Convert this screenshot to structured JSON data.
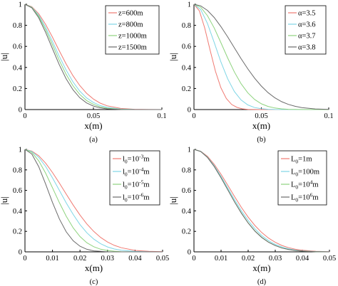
{
  "chart_data": [
    {
      "type": "line",
      "panel_label": "(a)",
      "xlabel": "x(m)",
      "ylabel": "|u|",
      "xlim": [
        0,
        0.1
      ],
      "ylim": [
        0,
        1
      ],
      "xticks": [
        0,
        0.05,
        0.1
      ],
      "xtick_labels": [
        "0",
        "0.05",
        "0.1"
      ],
      "yticks": [
        0,
        0.2,
        0.4,
        0.6,
        0.8,
        1
      ],
      "ytick_labels": [
        "0",
        "0.2",
        "0.4",
        "0.6",
        "0.8",
        "1"
      ],
      "legend_position": "top-right",
      "series": [
        {
          "name": "z=600m",
          "color": "#f07a72",
          "x": [
            0,
            0.005,
            0.01,
            0.015,
            0.02,
            0.025,
            0.03,
            0.035,
            0.04,
            0.045,
            0.05,
            0.055,
            0.06,
            0.07,
            0.08,
            0.09,
            0.1
          ],
          "y": [
            1,
            0.977,
            0.911,
            0.811,
            0.69,
            0.56,
            0.435,
            0.323,
            0.229,
            0.155,
            0.1,
            0.061,
            0.036,
            0.011,
            0.003,
            0.001,
            0
          ]
        },
        {
          "name": "z=800m",
          "color": "#7fd6e6",
          "x": [
            0,
            0.005,
            0.01,
            0.015,
            0.02,
            0.025,
            0.03,
            0.035,
            0.04,
            0.045,
            0.05,
            0.055,
            0.06,
            0.07,
            0.08,
            0.09,
            0.1
          ],
          "y": [
            1,
            0.973,
            0.897,
            0.784,
            0.649,
            0.508,
            0.377,
            0.264,
            0.176,
            0.111,
            0.067,
            0.038,
            0.021,
            0.005,
            0.001,
            0,
            0
          ]
        },
        {
          "name": "z=1000m",
          "color": "#8ed37e",
          "x": [
            0,
            0.005,
            0.01,
            0.015,
            0.02,
            0.025,
            0.03,
            0.035,
            0.04,
            0.045,
            0.05,
            0.055,
            0.06,
            0.07,
            0.08,
            0.09,
            0.1
          ],
          "y": [
            1,
            0.97,
            0.886,
            0.762,
            0.618,
            0.469,
            0.336,
            0.227,
            0.144,
            0.086,
            0.049,
            0.026,
            0.013,
            0.003,
            0,
            0,
            0
          ]
        },
        {
          "name": "z=1500m",
          "color": "#6b6b6b",
          "x": [
            0,
            0.005,
            0.01,
            0.015,
            0.02,
            0.025,
            0.03,
            0.035,
            0.04,
            0.045,
            0.05,
            0.055,
            0.06,
            0.07,
            0.08,
            0.09,
            0.1
          ],
          "y": [
            1,
            0.966,
            0.872,
            0.736,
            0.581,
            0.428,
            0.294,
            0.189,
            0.113,
            0.063,
            0.033,
            0.016,
            0.007,
            0.001,
            0,
            0,
            0
          ]
        }
      ]
    },
    {
      "type": "line",
      "panel_label": "(b)",
      "xlabel": "x(m)",
      "ylabel": "|u|",
      "xlim": [
        0,
        0.1
      ],
      "ylim": [
        0,
        1
      ],
      "xticks": [
        0,
        0.05,
        0.1
      ],
      "xtick_labels": [
        "0",
        "0.05",
        "0.1"
      ],
      "yticks": [
        0,
        0.2,
        0.4,
        0.6,
        0.8,
        1
      ],
      "ytick_labels": [
        "0",
        "0.2",
        "0.4",
        "0.6",
        "0.8",
        "1"
      ],
      "legend_position": "top-right",
      "series": [
        {
          "name": "α=3.5",
          "color": "#f07a72",
          "x": [
            0,
            0.004,
            0.008,
            0.012,
            0.016,
            0.02,
            0.024,
            0.028,
            0.032,
            0.036,
            0.04,
            0.05,
            0.06,
            0.08,
            0.1
          ],
          "y": [
            1,
            0.938,
            0.774,
            0.562,
            0.362,
            0.207,
            0.105,
            0.048,
            0.02,
            0.007,
            0.002,
            0,
            0,
            0,
            0
          ]
        },
        {
          "name": "α=3.6",
          "color": "#7fd6e6",
          "x": [
            0,
            0.005,
            0.01,
            0.015,
            0.02,
            0.025,
            0.03,
            0.035,
            0.04,
            0.045,
            0.05,
            0.055,
            0.06,
            0.08,
            0.1
          ],
          "y": [
            1,
            0.951,
            0.818,
            0.637,
            0.452,
            0.292,
            0.171,
            0.091,
            0.044,
            0.019,
            0.008,
            0.003,
            0.001,
            0,
            0
          ]
        },
        {
          "name": "α=3.7",
          "color": "#8ed37e",
          "x": [
            0,
            0.005,
            0.01,
            0.015,
            0.02,
            0.025,
            0.03,
            0.035,
            0.04,
            0.045,
            0.05,
            0.055,
            0.06,
            0.065,
            0.07,
            0.08,
            0.1
          ],
          "y": [
            1,
            0.972,
            0.892,
            0.775,
            0.635,
            0.49,
            0.357,
            0.245,
            0.158,
            0.096,
            0.055,
            0.03,
            0.015,
            0.007,
            0.003,
            0.001,
            0
          ]
        },
        {
          "name": "α=3.8",
          "color": "#6b6b6b",
          "x": [
            0,
            0.005,
            0.01,
            0.015,
            0.02,
            0.025,
            0.03,
            0.035,
            0.04,
            0.045,
            0.05,
            0.055,
            0.06,
            0.065,
            0.07,
            0.075,
            0.08,
            0.09,
            0.1
          ],
          "y": [
            1,
            0.985,
            0.942,
            0.874,
            0.788,
            0.69,
            0.586,
            0.483,
            0.386,
            0.298,
            0.223,
            0.161,
            0.112,
            0.075,
            0.049,
            0.031,
            0.018,
            0.006,
            0.002
          ]
        }
      ]
    },
    {
      "type": "line",
      "panel_label": "(c)",
      "xlabel": "x(m)",
      "ylabel": "|u|",
      "xlim": [
        0,
        0.05
      ],
      "ylim": [
        0,
        1
      ],
      "xticks": [
        0,
        0.01,
        0.02,
        0.03,
        0.04,
        0.05
      ],
      "xtick_labels": [
        "0",
        "0.01",
        "0.02",
        "0.03",
        "0.04",
        "0.05"
      ],
      "yticks": [
        0,
        0.2,
        0.4,
        0.6,
        0.8,
        1
      ],
      "ytick_labels": [
        "0",
        "0.2",
        "0.4",
        "0.6",
        "0.8",
        "1"
      ],
      "legend_position": "top-right",
      "series": [
        {
          "name_base": "l",
          "name_sub": "0",
          "name_mid": "=10",
          "name_sup": "-3",
          "name_unit": "m",
          "color": "#f07a72",
          "x": [
            0,
            0.0025,
            0.005,
            0.0075,
            0.01,
            0.0125,
            0.015,
            0.0175,
            0.02,
            0.0225,
            0.025,
            0.0275,
            0.03,
            0.0325,
            0.035,
            0.04,
            0.045,
            0.05
          ],
          "y": [
            1,
            0.984,
            0.938,
            0.866,
            0.774,
            0.671,
            0.563,
            0.457,
            0.359,
            0.272,
            0.199,
            0.141,
            0.096,
            0.063,
            0.04,
            0.014,
            0.005,
            0.002
          ]
        },
        {
          "name_base": "l",
          "name_sub": "0",
          "name_mid": "=10",
          "name_sup": "-4",
          "name_unit": "m",
          "color": "#7fd6e6",
          "x": [
            0,
            0.0025,
            0.005,
            0.0075,
            0.01,
            0.0125,
            0.015,
            0.0175,
            0.02,
            0.0225,
            0.025,
            0.0275,
            0.03,
            0.0325,
            0.035,
            0.04,
            0.045,
            0.05
          ],
          "y": [
            1,
            0.98,
            0.922,
            0.833,
            0.722,
            0.6,
            0.478,
            0.365,
            0.266,
            0.186,
            0.124,
            0.079,
            0.048,
            0.028,
            0.016,
            0.004,
            0.001,
            0
          ]
        },
        {
          "name_base": "l",
          "name_sub": "0",
          "name_mid": "=10",
          "name_sup": "-5",
          "name_unit": "m",
          "color": "#8ed37e",
          "x": [
            0,
            0.0025,
            0.005,
            0.0075,
            0.01,
            0.0125,
            0.015,
            0.0175,
            0.02,
            0.0225,
            0.025,
            0.0275,
            0.03,
            0.0325,
            0.035,
            0.04,
            0.045,
            0.05
          ],
          "y": [
            1,
            0.971,
            0.889,
            0.768,
            0.626,
            0.48,
            0.347,
            0.235,
            0.149,
            0.089,
            0.05,
            0.026,
            0.013,
            0.006,
            0.002,
            0,
            0,
            0
          ]
        },
        {
          "name_base": "l",
          "name_sub": "0",
          "name_mid": "=10",
          "name_sup": "-6",
          "name_unit": "m",
          "color": "#6b6b6b",
          "x": [
            0,
            0.0025,
            0.005,
            0.0075,
            0.01,
            0.0125,
            0.015,
            0.0175,
            0.02,
            0.0225,
            0.025,
            0.03,
            0.035,
            0.04,
            0.05
          ],
          "y": [
            1,
            0.955,
            0.832,
            0.662,
            0.482,
            0.321,
            0.195,
            0.108,
            0.055,
            0.025,
            0.01,
            0.001,
            0,
            0,
            0
          ]
        }
      ]
    },
    {
      "type": "line",
      "panel_label": "(d)",
      "xlabel": "x(m)",
      "ylabel": "|u|",
      "xlim": [
        0,
        0.05
      ],
      "ylim": [
        0,
        1
      ],
      "xticks": [
        0,
        0.01,
        0.02,
        0.03,
        0.04,
        0.05
      ],
      "xtick_labels": [
        "0",
        "0.01",
        "0.02",
        "0.03",
        "0.04",
        "0.05"
      ],
      "yticks": [
        0,
        0.2,
        0.4,
        0.6,
        0.8,
        1
      ],
      "ytick_labels": [
        "0",
        "0.2",
        "0.4",
        "0.6",
        "0.8",
        "1"
      ],
      "legend_position": "top-right",
      "series": [
        {
          "name_base": "L",
          "name_sub": "0",
          "name_mid": "=1m",
          "name_sup": "",
          "name_unit": "",
          "color": "#f07a72",
          "x": [
            0,
            0.0025,
            0.005,
            0.0075,
            0.01,
            0.0125,
            0.015,
            0.0175,
            0.02,
            0.0225,
            0.025,
            0.0275,
            0.03,
            0.0325,
            0.035,
            0.0375,
            0.04,
            0.045,
            0.05
          ],
          "y": [
            1,
            0.982,
            0.932,
            0.854,
            0.757,
            0.649,
            0.539,
            0.434,
            0.339,
            0.257,
            0.189,
            0.135,
            0.093,
            0.062,
            0.04,
            0.025,
            0.015,
            0.005,
            0.002
          ]
        },
        {
          "name_base": "L",
          "name_sub": "0",
          "name_mid": "=100m",
          "name_sup": "",
          "name_unit": "",
          "color": "#7fd6e6",
          "x": [
            0,
            0.0025,
            0.005,
            0.0075,
            0.01,
            0.0125,
            0.015,
            0.0175,
            0.02,
            0.0225,
            0.025,
            0.0275,
            0.03,
            0.0325,
            0.035,
            0.0375,
            0.04,
            0.045,
            0.05
          ],
          "y": [
            1,
            0.981,
            0.925,
            0.841,
            0.737,
            0.623,
            0.509,
            0.401,
            0.306,
            0.225,
            0.16,
            0.11,
            0.073,
            0.047,
            0.029,
            0.017,
            0.01,
            0.003,
            0.001
          ]
        },
        {
          "name_base": "L",
          "name_sub": "0",
          "name_mid": "=10",
          "name_sup": "4",
          "name_unit": "m",
          "color": "#8ed37e",
          "x": [
            0,
            0.0025,
            0.005,
            0.0075,
            0.01,
            0.0125,
            0.015,
            0.0175,
            0.02,
            0.0225,
            0.025,
            0.0275,
            0.03,
            0.0325,
            0.035,
            0.0375,
            0.04,
            0.045,
            0.05
          ],
          "y": [
            1,
            0.98,
            0.922,
            0.833,
            0.725,
            0.607,
            0.489,
            0.38,
            0.284,
            0.205,
            0.143,
            0.096,
            0.062,
            0.038,
            0.023,
            0.013,
            0.007,
            0.002,
            0
          ]
        },
        {
          "name_base": "L",
          "name_sub": "0",
          "name_mid": "=10",
          "name_sup": "6",
          "name_unit": "m",
          "color": "#6b6b6b",
          "x": [
            0,
            0.0025,
            0.005,
            0.0075,
            0.01,
            0.0125,
            0.015,
            0.0175,
            0.02,
            0.0225,
            0.025,
            0.0275,
            0.03,
            0.0325,
            0.035,
            0.0375,
            0.04,
            0.045,
            0.05
          ],
          "y": [
            1,
            0.979,
            0.921,
            0.832,
            0.722,
            0.604,
            0.486,
            0.377,
            0.281,
            0.202,
            0.14,
            0.094,
            0.061,
            0.037,
            0.022,
            0.013,
            0.007,
            0.002,
            0
          ]
        }
      ]
    }
  ]
}
